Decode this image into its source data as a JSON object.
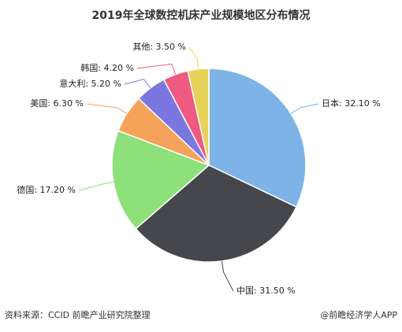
{
  "chart_data": {
    "type": "pie",
    "title": "2019年全球数控机床产业规模地区分布情况",
    "categories": [
      "日本",
      "中国",
      "德国",
      "美国",
      "意大利",
      "韩国",
      "其他"
    ],
    "values": [
      32.1,
      31.5,
      17.2,
      6.3,
      5.2,
      4.2,
      3.5
    ],
    "value_labels": [
      "32.10 %",
      "31.50 %",
      "17.20 %",
      "6.30 %",
      "5.20 %",
      "4.20 %",
      "3.50 %"
    ],
    "colors": [
      "#7eb3e8",
      "#45474d",
      "#8ee07a",
      "#f5a25a",
      "#7b77e0",
      "#ee5a80",
      "#e8d35a"
    ],
    "label_separator": ": ",
    "source": "资料来源：CCID 前瞻产业研究院整理",
    "credit": "@前瞻经济学人APP"
  }
}
